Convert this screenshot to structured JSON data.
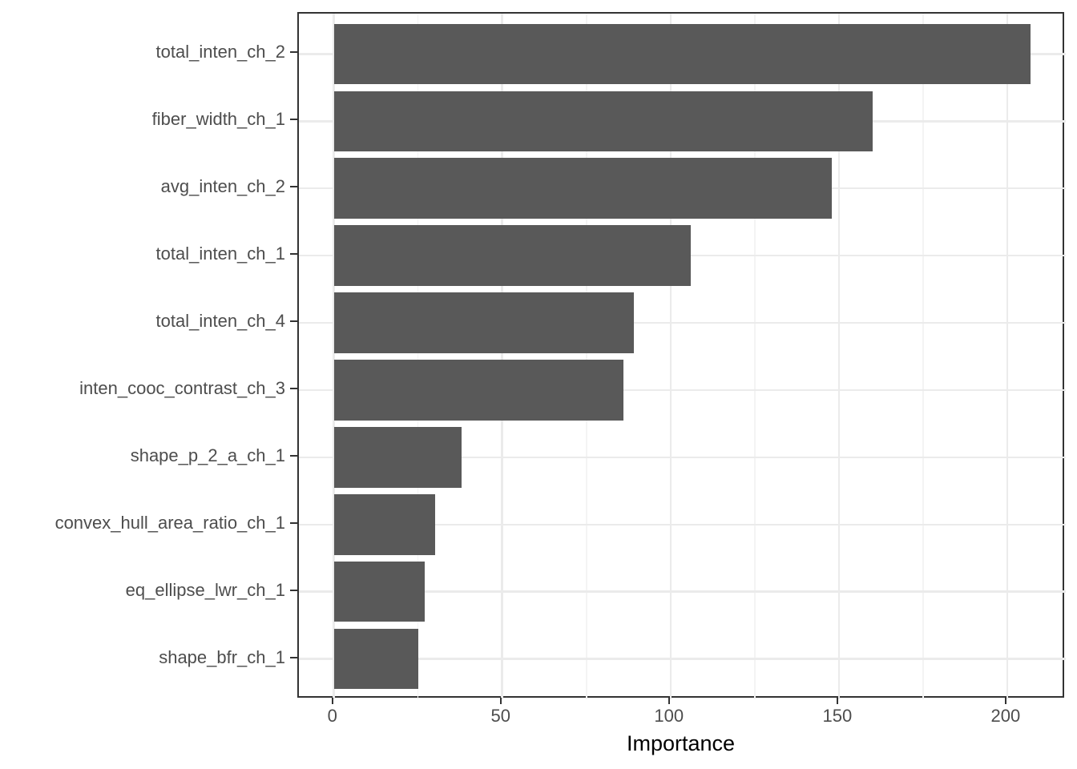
{
  "chart_data": {
    "type": "bar",
    "orientation": "horizontal",
    "title": "",
    "xlabel": "Importance",
    "ylabel": "",
    "categories": [
      "total_inten_ch_2",
      "fiber_width_ch_1",
      "avg_inten_ch_2",
      "total_inten_ch_1",
      "total_inten_ch_4",
      "inten_cooc_contrast_ch_3",
      "shape_p_2_a_ch_1",
      "convex_hull_area_ratio_ch_1",
      "eq_ellipse_lwr_ch_1",
      "shape_bfr_ch_1"
    ],
    "values": [
      207,
      160,
      148,
      106,
      89,
      86,
      38,
      30,
      27,
      25
    ],
    "xlim": [
      -10.4,
      217.4
    ],
    "x_major_ticks": [
      0,
      50,
      100,
      150,
      200
    ],
    "x_major_tick_labels": [
      "0",
      "50",
      "100",
      "150",
      "200"
    ],
    "x_minor_ticks": [
      25,
      75,
      125,
      175
    ],
    "grid": "on",
    "legend": "none",
    "bar_width_fraction": 0.9,
    "colors": {
      "bar_fill": "#595959",
      "panel_border": "#333333",
      "grid_major": "#EBEBEB",
      "grid_minor": "#F4F4F4",
      "tick_mark": "#333333",
      "tick_label": "#4D4D4D",
      "axis_title": "#000000",
      "background": "#FFFFFF"
    }
  }
}
